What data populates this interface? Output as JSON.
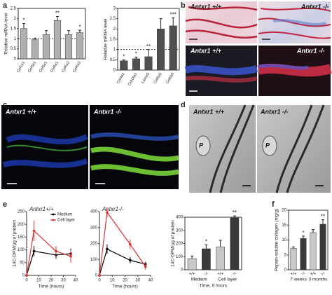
{
  "panel_labels": [
    "a",
    "b",
    "c",
    "d",
    "e",
    "f"
  ],
  "image_labels": {
    "b_top": [
      "Antxr1 +/+",
      "Antxr1 -/-"
    ],
    "b_bottom": [
      "Antxr1 +/+",
      "Antxr1 -/-"
    ],
    "c": [
      "Antxr1 +/+",
      "Antxr1 -/-"
    ],
    "d": [
      "Antxr1 +/+",
      "Antxr1 -/-",
      "P",
      "P"
    ]
  },
  "chart_data": [
    {
      "type": "bar",
      "ylabel": "Relative mRNA level",
      "categories": [
        "Col1a1",
        "Col3a1",
        "Col5a1",
        "Col6a1",
        "Col6a2",
        "Col6a3"
      ],
      "values": [
        1.5,
        0.95,
        1.2,
        1.9,
        1.2,
        1.3
      ],
      "errors": [
        0.25,
        0.08,
        0.2,
        0.2,
        0.2,
        0.12
      ],
      "annotations": [
        "*",
        null,
        null,
        "**",
        null,
        "*"
      ],
      "color": "#b0b0b0",
      "ylim": [
        0,
        2.5
      ],
      "yticks": [
        0,
        0.5,
        1,
        1.5,
        2,
        2.5
      ],
      "reference_line": 1
    },
    {
      "type": "bar",
      "ylabel": "Relative mRNA level",
      "categories": [
        "Col4a1",
        "Col18a1",
        "Lama5",
        "Col6a5",
        "Col6a6"
      ],
      "values": [
        0.45,
        0.55,
        0.65,
        2.0,
        2.15
      ],
      "errors": [
        0.05,
        0.08,
        0.35,
        0.5,
        0.4
      ],
      "annotations": [
        "*",
        "*",
        "**",
        null,
        "***"
      ],
      "color": "#505050",
      "ylim": [
        0,
        3
      ],
      "yticks": [
        0,
        0.5,
        1,
        1.5,
        2,
        2.5,
        3
      ],
      "reference_line": 1
    },
    {
      "type": "line",
      "title": "Antxr1+/+",
      "ylabel": "14C-DPM/µg of protein",
      "xlabel": "Time (hours)",
      "x": [
        0,
        6,
        24,
        36
      ],
      "xlim": [
        0,
        40
      ],
      "xticks": [
        0,
        10,
        20,
        30,
        40
      ],
      "ylim": [
        0,
        250
      ],
      "yticks": [
        0,
        50,
        100,
        150,
        200,
        250
      ],
      "legend": "upper right",
      "series": [
        {
          "name": "Medium",
          "color": "#000000",
          "values": [
            0,
            95,
            80,
            85
          ],
          "errors": [
            0,
            20,
            15,
            20
          ]
        },
        {
          "name": "Cell layer",
          "color": "#e03030",
          "values": [
            0,
            175,
            95,
            75
          ],
          "errors": [
            0,
            40,
            20,
            25
          ]
        }
      ]
    },
    {
      "type": "line",
      "title": "Antxr1-/-",
      "xlabel": "Time (hours)",
      "x": [
        0,
        6,
        24,
        36
      ],
      "xlim": [
        0,
        40
      ],
      "xticks": [
        0,
        10,
        20,
        30,
        40
      ],
      "ylim": [
        0,
        400
      ],
      "yticks": [
        0,
        100,
        200,
        300,
        400
      ],
      "series": [
        {
          "name": "Medium",
          "color": "#000000",
          "values": [
            0,
            165,
            95,
            70
          ],
          "errors": [
            0,
            30,
            20,
            15
          ]
        },
        {
          "name": "Cell layer",
          "color": "#e03030",
          "values": [
            0,
            395,
            195,
            55
          ],
          "errors": [
            0,
            30,
            30,
            20
          ]
        }
      ]
    },
    {
      "type": "bar",
      "ylabel": "14C-DPM/µg of protein",
      "xlabel": "Time, 6 hours",
      "categories": [
        "+/+",
        "-/-",
        "+/+",
        "-/-"
      ],
      "groups": [
        "Medium",
        "Cell layer"
      ],
      "values": [
        85,
        160,
        175,
        395
      ],
      "errors": [
        20,
        30,
        50,
        15
      ],
      "colors": [
        "#c8c8c8",
        "#3a3a3a",
        "#c8c8c8",
        "#3a3a3a"
      ],
      "annotations": [
        null,
        "*",
        null,
        "**"
      ],
      "ylim": [
        0,
        400
      ],
      "yticks": [
        0,
        100,
        200,
        300,
        400
      ]
    },
    {
      "type": "bar",
      "ylabel": "Pepsin-soluble collagen (mg/g)",
      "categories": [
        "+/+",
        "-/-",
        "+/+",
        "-/-"
      ],
      "groups": [
        "7 weeks",
        "3 months"
      ],
      "values": [
        7.2,
        10.5,
        12.5,
        15.3
      ],
      "errors": [
        0.5,
        0.8,
        1,
        1.5
      ],
      "colors": [
        "#c8c8c8",
        "#3a3a3a",
        "#c8c8c8",
        "#3a3a3a"
      ],
      "annotations": [
        null,
        "*",
        null,
        "**"
      ],
      "ylim": [
        0,
        20
      ],
      "yticks": [
        0,
        5,
        10,
        15,
        20
      ]
    }
  ]
}
